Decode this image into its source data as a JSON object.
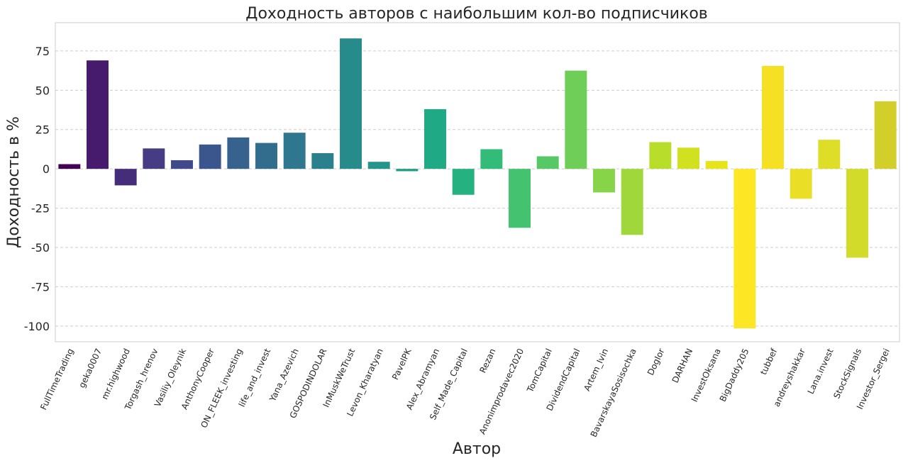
{
  "chart_data": {
    "type": "bar",
    "title": "Доходность авторов с наибольшим кол-во подписчиков",
    "xlabel": "Автор",
    "ylabel": "Доходность в %",
    "ylim": [
      -110,
      93
    ],
    "yticks": [
      75,
      50,
      25,
      0,
      -25,
      -50,
      -75,
      -100
    ],
    "ytick_labels": [
      "75",
      "50",
      "25",
      "0",
      "-25",
      "-50",
      "-75",
      "-100"
    ],
    "grid": "horizontal dashed",
    "palette": "viridis",
    "categories": [
      "FullTimeTrading",
      "geka0007",
      "mr.highwood",
      "Torgash_hrenov",
      "Vasiliy_Oleynik",
      "AnthonyCooper",
      "ON_FLEEK_investing",
      "life_and_invest",
      "Yana_Azevich",
      "GOSPODINDOLAR",
      "InMuskWeTrust",
      "Levon_Kharatyan",
      "PavelPK",
      "Alex_Abramyan",
      "Self_Made_Capital",
      "Rezan",
      "Anonimprodavec2020",
      "TomCapital",
      "DividendCapital",
      "Artem_Ivin",
      "BavarskayaSosisochka",
      "DogIor",
      "DARHAN",
      "InvestOksana",
      "BigDaddy205",
      "tubbef",
      "andreyshakkar",
      "Lana.invest",
      "StockSignals",
      "Investor_Sergei"
    ],
    "values": [
      3,
      69,
      -10.5,
      13,
      5.5,
      15.5,
      20,
      16.5,
      23,
      10,
      83,
      4.5,
      -1.5,
      38,
      -16.5,
      12.5,
      -37.5,
      8,
      62.5,
      -15,
      -42,
      17,
      13.5,
      5,
      -101.5,
      65.5,
      -19,
      18.5,
      -56.5,
      43
    ],
    "colors": [
      "#440154",
      "#461a6c",
      "#462d7c",
      "#453c84",
      "#404a8b",
      "#3b568d",
      "#37628e",
      "#326d8e",
      "#2e778e",
      "#2a818d",
      "#278b8c",
      "#25958b",
      "#219e87",
      "#1fa985",
      "#25b280",
      "#33bb79",
      "#44c26f",
      "#57c866",
      "#6fce58",
      "#87d449",
      "#a0d83b",
      "#b8dd2b",
      "#d1e11f",
      "#e7e419",
      "#fde725",
      "#f5e024",
      "#eadf26",
      "#dedd28",
      "#d2db2a",
      "#d3cf2a"
    ]
  }
}
